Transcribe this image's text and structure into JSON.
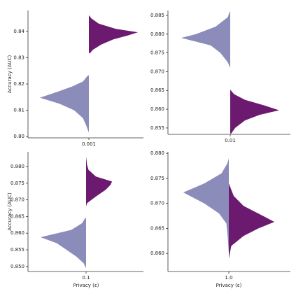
{
  "chart_data": [
    {
      "type": "violin",
      "categories": [
        "0.001"
      ],
      "ylabel": "Accuracy (AUC)",
      "ylim": [
        0.7995,
        0.848
      ],
      "yticks": [
        {
          "value": 0.8,
          "label": "0.80"
        },
        0.81,
        0.82,
        0.83,
        0.84
      ],
      "series": [
        {
          "side": "left",
          "color": "#8c8cba",
          "y": [
            0.8015,
            0.804,
            0.807,
            0.81,
            0.8125,
            0.8148,
            0.817,
            0.819,
            0.821,
            0.8233
          ],
          "density": [
            0,
            0.05,
            0.12,
            0.3,
            0.6,
            1.0,
            0.65,
            0.35,
            0.12,
            0.02
          ]
        },
        {
          "side": "right",
          "color": "#6b1a6f",
          "y": [
            0.8317,
            0.833,
            0.835,
            0.837,
            0.8385,
            0.8397,
            0.841,
            0.843,
            0.845,
            0.8462
          ],
          "density": [
            0.02,
            0.08,
            0.25,
            0.5,
            0.8,
            1.0,
            0.55,
            0.2,
            0.05,
            0
          ]
        }
      ]
    },
    {
      "type": "violin",
      "categories": [
        "0.01"
      ],
      "ylim": [
        0.8533,
        0.8863
      ],
      "yticks": [
        0.855,
        {
          "value": 0.86,
          "label": "0.860"
        },
        0.865,
        {
          "value": 0.87,
          "label": "0.870"
        },
        0.875,
        {
          "value": 0.88,
          "label": "0.880"
        },
        0.885
      ],
      "series": [
        {
          "side": "left",
          "color": "#8c8cba",
          "y": [
            0.871,
            0.8725,
            0.875,
            0.877,
            0.879,
            0.88,
            0.882,
            0.8845,
            0.886
          ],
          "density": [
            0,
            0.05,
            0.2,
            0.4,
            1.0,
            0.7,
            0.3,
            0.05,
            0.01
          ]
        },
        {
          "side": "right",
          "color": "#6b1a6f",
          "y": [
            0.8535,
            0.855,
            0.857,
            0.8585,
            0.8597,
            0.861,
            0.8625,
            0.864,
            0.8652
          ],
          "density": [
            0.02,
            0.1,
            0.3,
            0.6,
            1.0,
            0.7,
            0.3,
            0.08,
            0
          ]
        }
      ]
    },
    {
      "type": "violin",
      "categories": [
        "0.1"
      ],
      "ylabel": "Accuracy (AUC)",
      "xlabel": "Privacy (ε)",
      "ylim": [
        0.8485,
        0.8844
      ],
      "yticks": [
        {
          "value": 0.85,
          "label": "0.850"
        },
        0.855,
        {
          "value": 0.86,
          "label": "0.860"
        },
        0.865,
        {
          "value": 0.87,
          "label": "0.870"
        },
        0.875,
        {
          "value": 0.88,
          "label": "0.880"
        }
      ],
      "series": [
        {
          "side": "left",
          "color": "#8c8cba",
          "y": [
            0.8495,
            0.851,
            0.853,
            0.855,
            0.857,
            0.8588,
            0.861,
            0.863,
            0.8645
          ],
          "density": [
            0,
            0.05,
            0.2,
            0.4,
            0.6,
            0.93,
            0.3,
            0.08,
            0.02
          ]
        },
        {
          "side": "right",
          "color": "#6b1a6f",
          "y": [
            0.868,
            0.869,
            0.871,
            0.873,
            0.8745,
            0.8755,
            0.877,
            0.879,
            0.8805,
            0.883
          ],
          "density": [
            0,
            0.02,
            0.2,
            0.4,
            0.5,
            0.53,
            0.2,
            0.05,
            0.02,
            0
          ]
        }
      ]
    },
    {
      "type": "violin",
      "categories": [
        "1.0"
      ],
      "xlabel": "Privacy (ε)",
      "ylim": [
        0.8564,
        0.8803
      ],
      "yticks": [
        {
          "value": 0.86,
          "label": "0.860"
        },
        0.865,
        {
          "value": 0.87,
          "label": "0.870"
        },
        0.875,
        {
          "value": 0.88,
          "label": "0.880"
        }
      ],
      "series": [
        {
          "side": "left",
          "color": "#8c8cba",
          "y": [
            0.86,
            0.863,
            0.866,
            0.868,
            0.87,
            0.8722,
            0.874,
            0.876,
            0.878,
            0.879
          ],
          "density": [
            0,
            0.02,
            0.05,
            0.2,
            0.5,
            0.93,
            0.5,
            0.15,
            0.03,
            0
          ]
        },
        {
          "side": "right",
          "color": "#6b1a6f",
          "y": [
            0.859,
            0.8615,
            0.8635,
            0.865,
            0.8663,
            0.8675,
            0.8695,
            0.8715,
            0.874
          ],
          "density": [
            0,
            0.05,
            0.3,
            0.6,
            0.93,
            0.7,
            0.3,
            0.1,
            0
          ]
        }
      ]
    }
  ]
}
